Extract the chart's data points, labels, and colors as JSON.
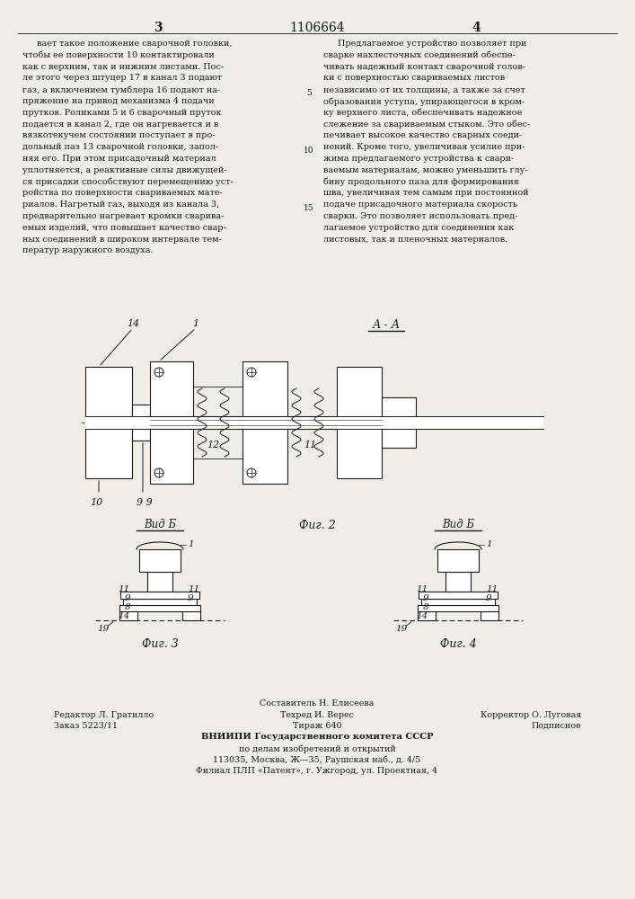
{
  "page_width": 7.07,
  "page_height": 10.0,
  "bg_color": "#f0ede8",
  "text_color": "#1a1a1a",
  "header": {
    "left_num": "3",
    "center_num": "1106664",
    "right_num": "4"
  },
  "left_column_text": [
    "вает такое положение сварочной головки,",
    "чтобы ее поверхности 10 контактировали",
    "как с верхним, так и нижним листами. Пос-",
    "ле этого через штуцер 17 в канал 3 подают",
    "газ, а включением тумблера 16 подают на-",
    "пряжение на привод механизма 4 подачи",
    "прутков. Роликами 5 и 6 сварочный пруток",
    "подается в канал 2, где он нагревается и в",
    "вязкотекучем состоянии поступает в про-",
    "дольный паз 13 сварочной головки, запол-",
    "няя его. При этом присадочный материал",
    "уплотняется, а реактивные силы движущей-",
    "ся присадки способствуют перемещению уст-",
    "ройства по поверхности свариваемых мате-",
    "риалов. Нагретый газ, выходя из канала 3,",
    "предварительно нагревает кромки сварива-",
    "емых изделий, что повышает качество свар-",
    "ных соединений в широком интервале тем-",
    "ператур наружного воздуха."
  ],
  "right_column_text": [
    "Предлагаемое устройство позволяет при",
    "сварке нахлесточных соединений обеспе-",
    "чивать надежный контакт сварочной голов-",
    "ки с поверхностью свариваемых листов",
    "независимо от их толщины, а также за счет",
    "образования уступа, упирающегося в кром-",
    "ку верхнего листа, обеспечивать надежное",
    "слежение за свариваемым стыком. Это обес-",
    "печивает высокое качество сварных соеди-",
    "нений. Кроме того, увеличивая усилие при-",
    "жима предлагаемого устройства к свари-",
    "ваемым материалам, можно уменьшить глу-",
    "бину продольного паза для формирования",
    "шва, увеличивая тем самым при постоянной",
    "подаче присадочного материала скорость",
    "сварки. Это позволяет использовать пред-",
    "лагаемое устройство для соединения как",
    "листовых, так и пленочных материалов."
  ],
  "fig2_label": "А - А",
  "fig2_caption": "Фиг. 2",
  "fig3_caption": "Фиг. 3",
  "fig4_caption": "Фиг. 4",
  "vid_b_label": "Вид Б",
  "footer_lines": [
    "Составитель Н. Елисеева",
    "Техред И. Верес",
    "Корректор О. Луговая",
    "Редактор Л. Гратилло",
    "Заказ 5223/11",
    "Тираж 640",
    "Подписное",
    "ВНИИПИ Государственного комитета СССР",
    "по делам изобретений и открытий",
    "113035, Москва, Ж—35, Раушская наб., д. 4/5",
    "Филиал ПЛП «Патент», г. Ужгород, ул. Проектная, 4"
  ]
}
